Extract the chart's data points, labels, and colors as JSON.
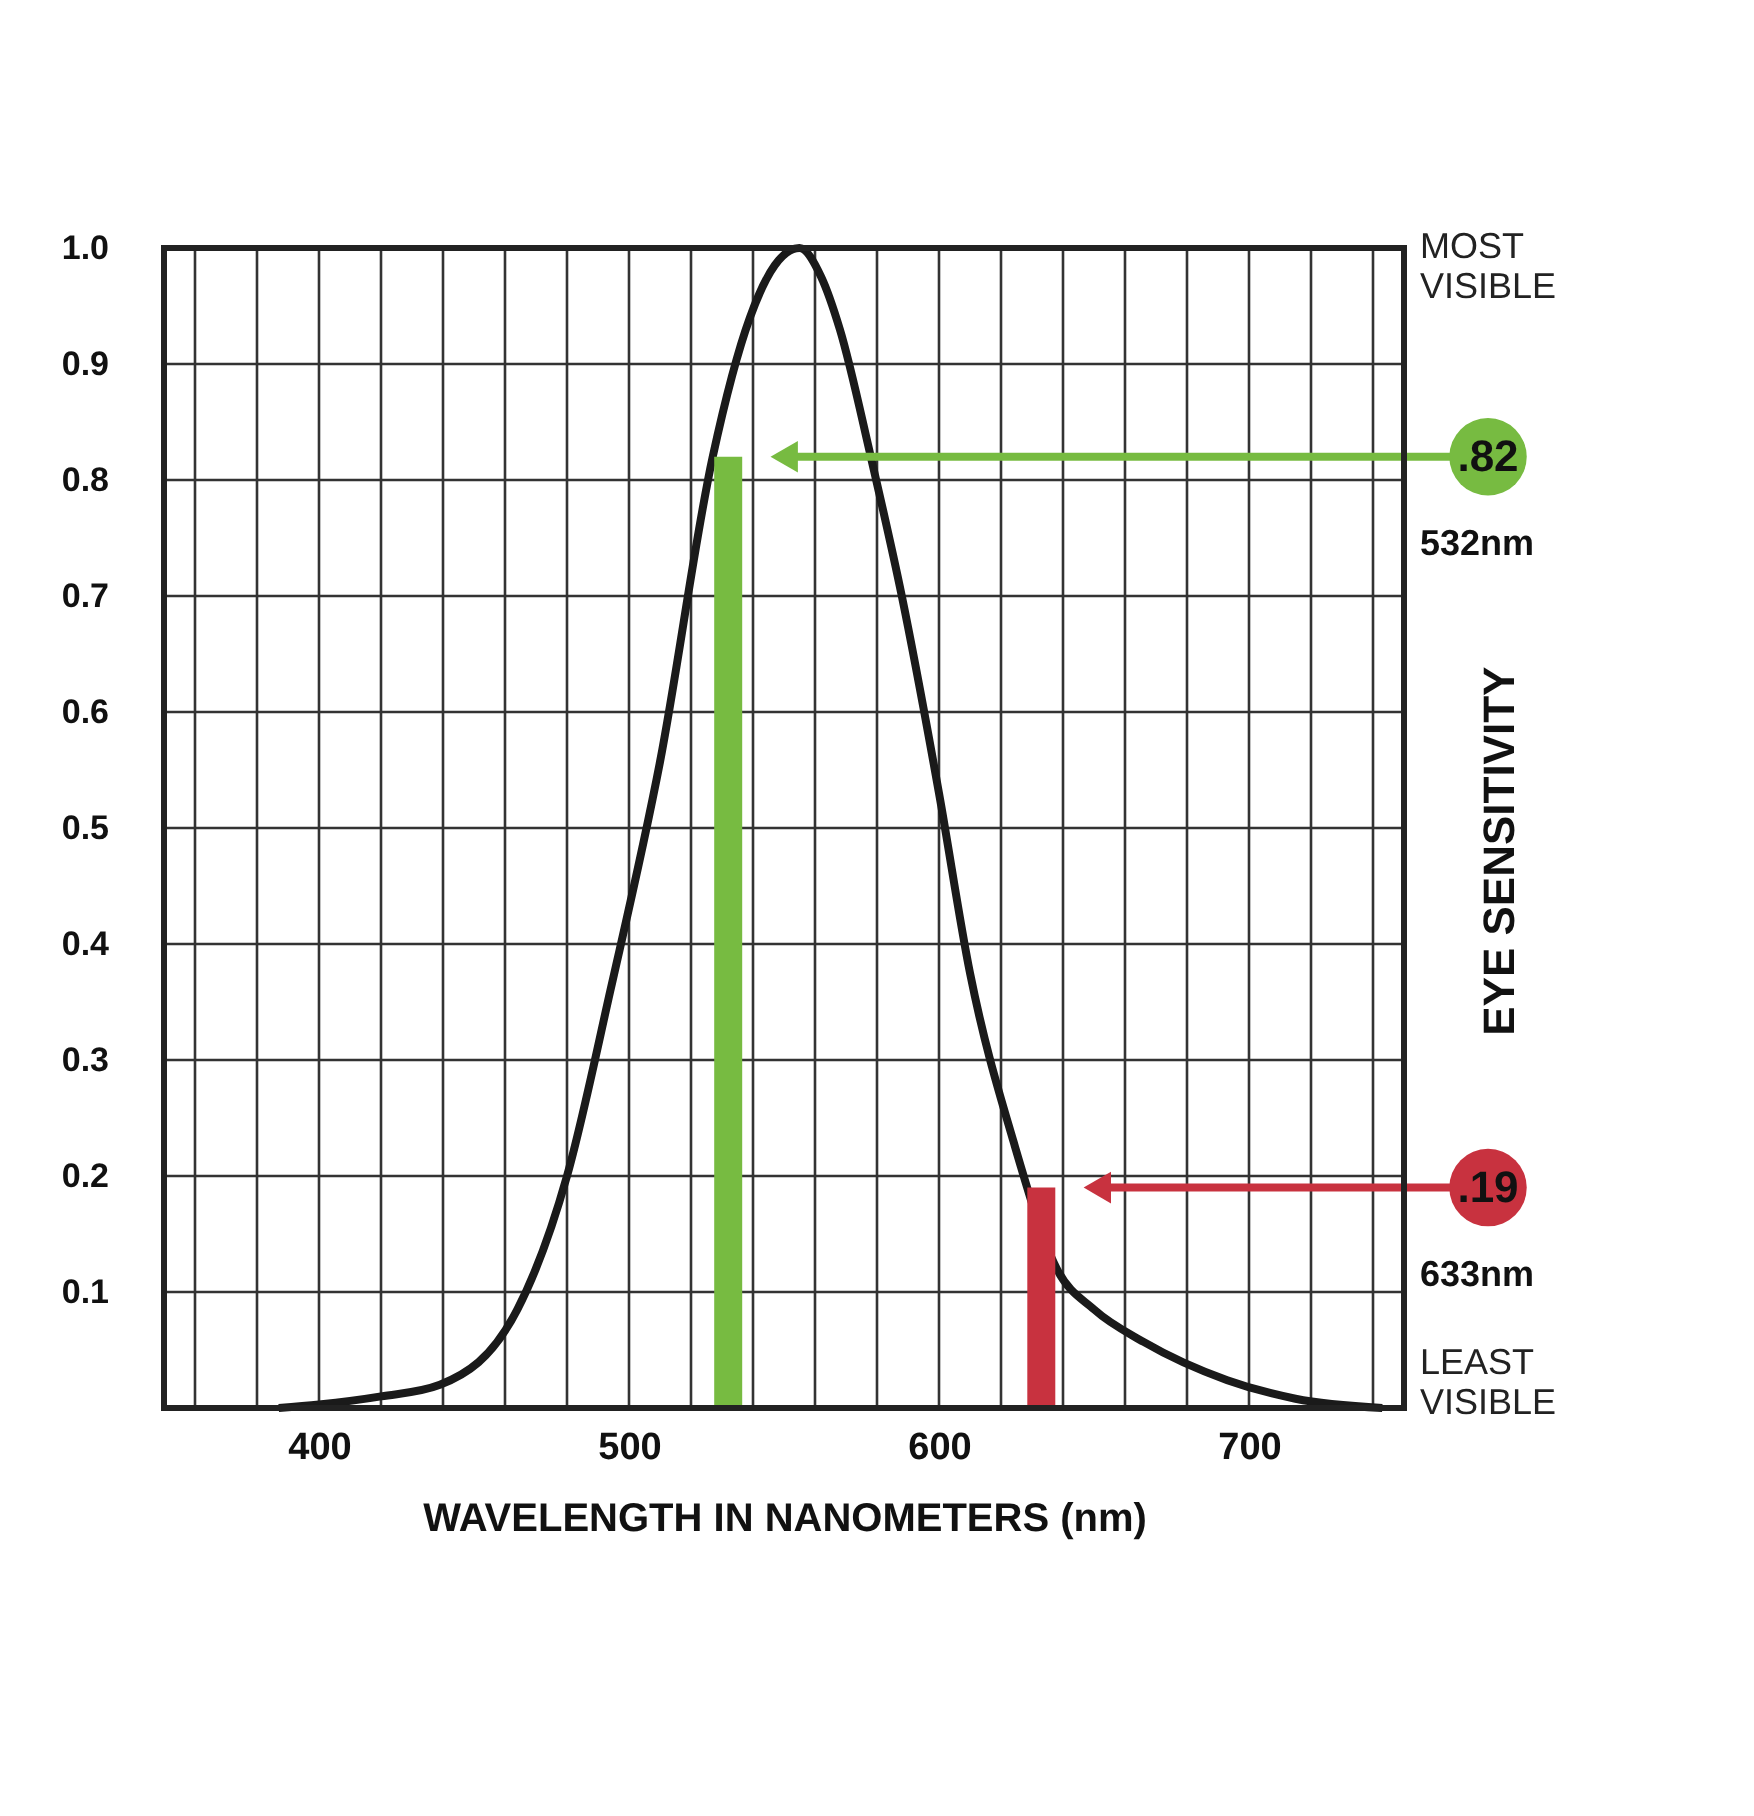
{
  "chart_data": {
    "type": "line",
    "xlabel": "WAVELENGTH IN NANOMETERS (nm)",
    "ylabel": "EYE SENSITIVITY",
    "series": [
      {
        "color": "#1a1a1a",
        "x": [
          387,
          400,
          420,
          439,
          464,
          480,
          494,
          510,
          527,
          539,
          547,
          555,
          562,
          568,
          578,
          588,
          600,
          610,
          624,
          638,
          650,
          666,
          693,
          715,
          743
        ],
        "values": [
          0.0,
          0.003,
          0.01,
          0.02,
          0.085,
          0.2,
          0.36,
          0.557,
          0.82,
          0.94,
          0.985,
          1.0,
          0.975,
          0.93,
          0.82,
          0.7,
          0.53,
          0.375,
          0.23,
          0.12,
          0.085,
          0.057,
          0.024,
          0.008,
          0.0
        ]
      },
      {
        "type": "bar",
        "color": "#77bb41",
        "x": [
          532
        ],
        "values": [
          0.82
        ]
      },
      {
        "type": "bar",
        "color": "#c8323f",
        "x": [
          633
        ],
        "values": [
          0.19
        ]
      }
    ],
    "annotations": [
      "MOST VISIBLE",
      "532nm",
      "633nm",
      "LEAST VISIBLE",
      ".82",
      ".19"
    ],
    "xlim": [
      350,
      750
    ],
    "xticks": [
      {
        "value": 360,
        "label": null
      },
      {
        "value": 380,
        "label": null
      },
      400,
      {
        "value": 420,
        "label": null
      },
      {
        "value": 440,
        "label": null
      },
      {
        "value": 460,
        "label": null
      },
      {
        "value": 480,
        "label": null
      },
      500,
      {
        "value": 520,
        "label": null
      },
      {
        "value": 540,
        "label": null
      },
      {
        "value": 560,
        "label": null
      },
      {
        "value": 580,
        "label": null
      },
      600,
      {
        "value": 620,
        "label": null
      },
      {
        "value": 640,
        "label": null
      },
      {
        "value": 660,
        "label": null
      },
      {
        "value": 680,
        "label": null
      },
      700,
      {
        "value": 720,
        "label": null
      },
      {
        "value": 740,
        "label": null
      }
    ],
    "ylim": [
      0,
      1.0
    ],
    "yticks": [
      0.1,
      0.2,
      0.3,
      0.4,
      0.5,
      0.6,
      0.7,
      0.8,
      0.9,
      {
        "value": 1.0,
        "label": "1.0"
      }
    ],
    "grid": true
  }
}
